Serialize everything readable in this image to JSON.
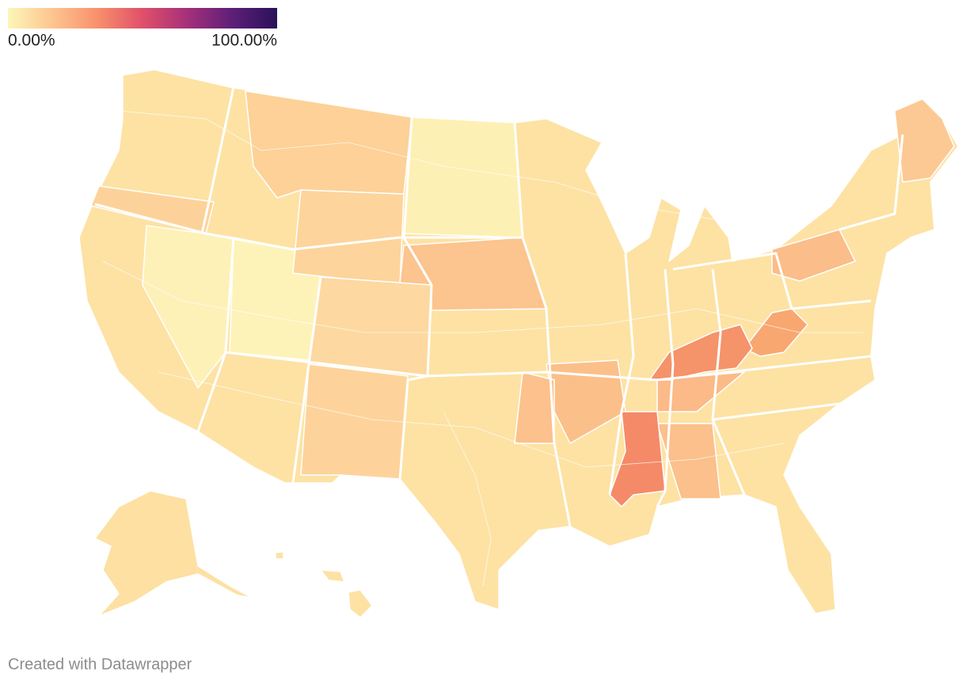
{
  "legend": {
    "colors": [
      "#fcf6b8",
      "#fdc58f",
      "#f8906c",
      "#e0506a",
      "#a5307a",
      "#5d1f78",
      "#2a1158"
    ],
    "ticks": [
      {
        "value": 0,
        "label": "0.00%"
      },
      {
        "value": 100,
        "label": "100.00%"
      }
    ]
  },
  "footer": {
    "credit": "Created with Datawrapper"
  }
}
